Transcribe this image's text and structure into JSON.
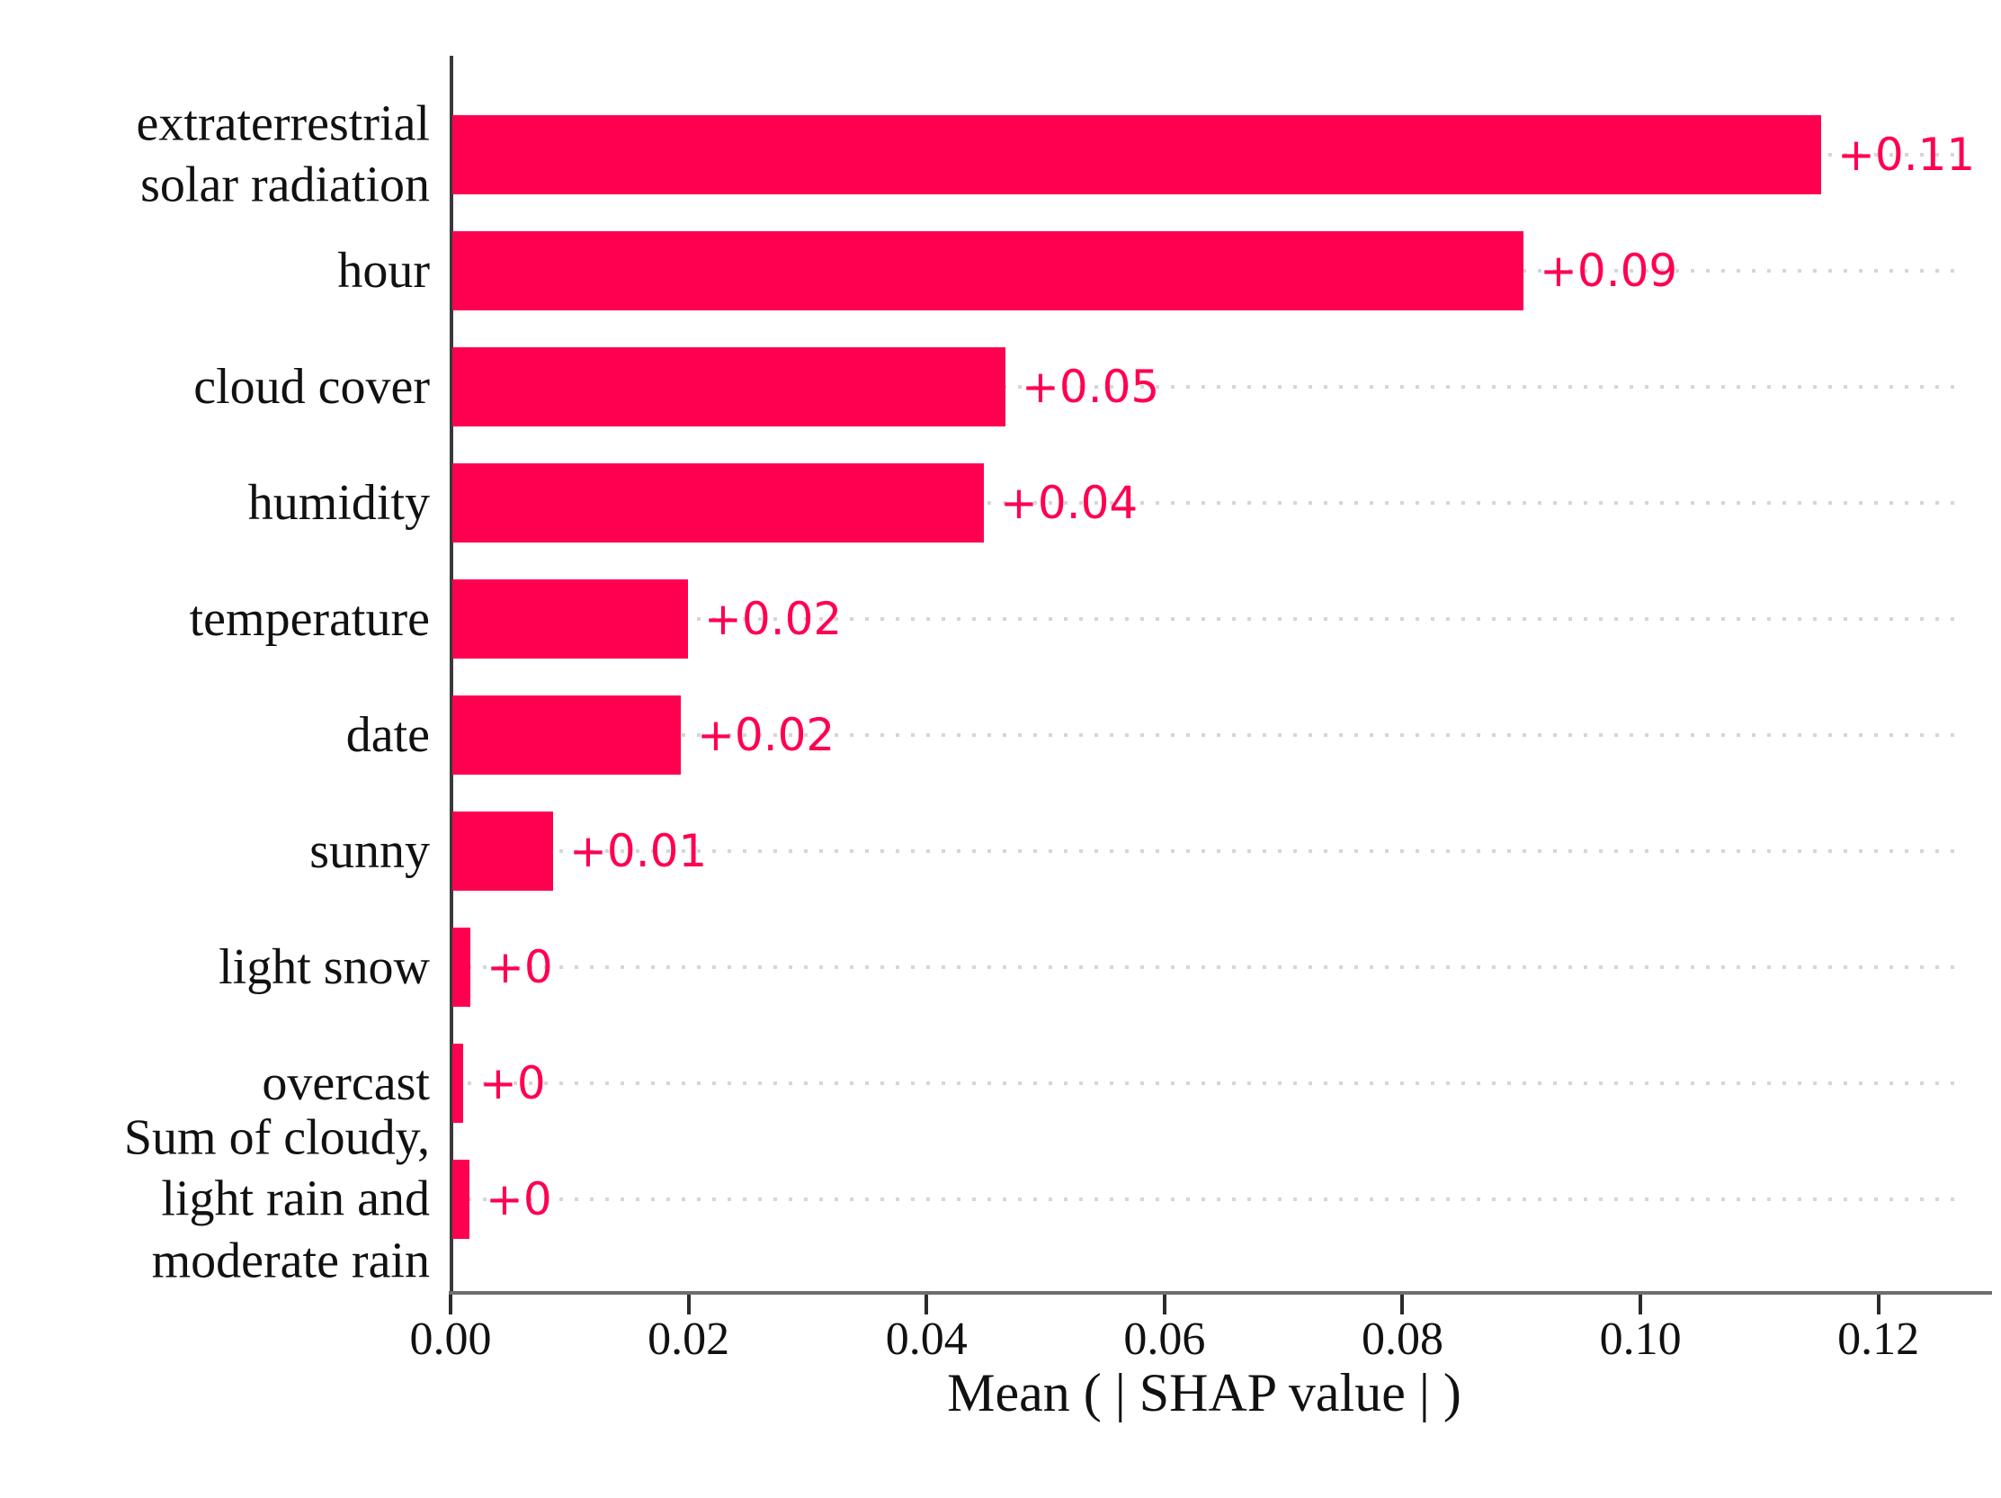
{
  "chart_data": {
    "type": "bar",
    "orientation": "horizontal",
    "title": "",
    "categories": [
      "extraterrestrial\nsolar radiation",
      "hour",
      "cloud cover",
      "humidity",
      "temperature",
      "date",
      "sunny",
      "light snow",
      "overcast",
      "Sum of cloudy,\nlight rain and\nmoderate rain"
    ],
    "values": [
      0.115,
      0.09,
      0.0465,
      0.0447,
      0.0198,
      0.0192,
      0.0085,
      0.0015,
      0.0009,
      0.0014
    ],
    "bar_labels": [
      "+0.11",
      "+0.09",
      "+0.05",
      "+0.04",
      "+0.02",
      "+0.02",
      "+0.01",
      "+0",
      "+0",
      "+0"
    ],
    "xlabel": "Mean ( | SHAP value | )",
    "x_tick_labels": [
      "0.00",
      "0.02",
      "0.04",
      "0.06",
      "0.08",
      "0.10",
      "0.12"
    ],
    "x_tick_values": [
      0.0,
      0.02,
      0.04,
      0.06,
      0.08,
      0.1,
      0.12
    ],
    "xlim": [
      0,
      0.1266
    ],
    "grid": "dotted-horizontal",
    "legend_position": "none",
    "bar_color": "#ff0051",
    "value_label_color": "#ff0051",
    "gridline_color": "#d6d6d6",
    "axis_text_color": "#111111"
  }
}
